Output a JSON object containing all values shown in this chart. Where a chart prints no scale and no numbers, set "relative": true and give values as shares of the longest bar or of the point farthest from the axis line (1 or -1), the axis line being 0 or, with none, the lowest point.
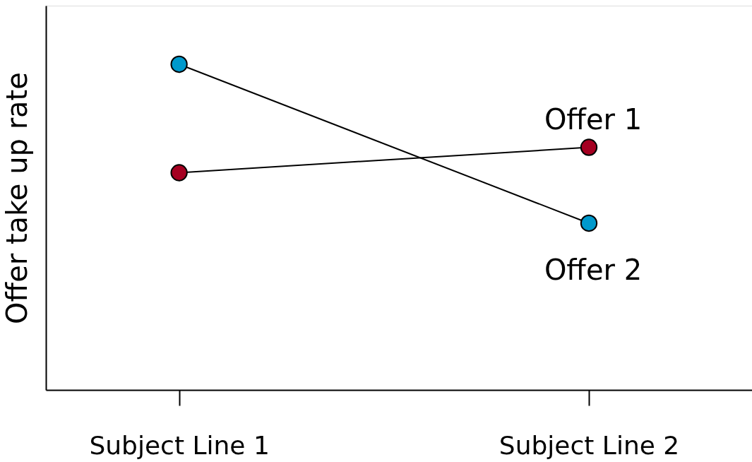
{
  "chart_data": {
    "type": "line",
    "ylabel": "Offer take up rate",
    "categories": [
      "Subject Line 1",
      "Subject Line 2"
    ],
    "relative": true,
    "legend": false,
    "grid": false,
    "marker": "circle",
    "series": [
      {
        "name": "Offer  1",
        "color": "#a50021",
        "values": [
          0.667,
          0.745
        ]
      },
      {
        "name": "Offer 2",
        "color": "#0099cc",
        "values": [
          1,
          0.512
        ]
      }
    ]
  }
}
